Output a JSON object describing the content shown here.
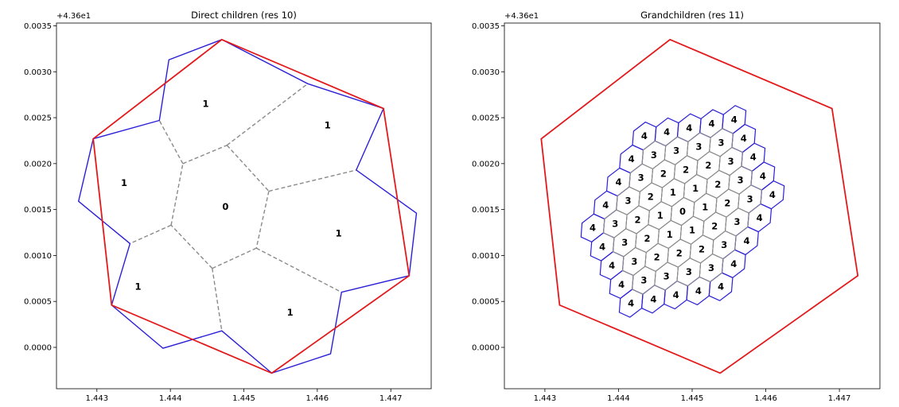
{
  "colors": {
    "parent_outline": "#e31a1c",
    "child_outline": "#2b1fd6",
    "interior_edge": "#8a8a8a",
    "axes": "#000000",
    "background": "#ffffff"
  },
  "chart_data": [
    {
      "type": "diagram",
      "title": "Direct children (res 10)",
      "offset_text": "+4.36e1",
      "xlim": [
        1.44245,
        1.44755
      ],
      "ylim": [
        -0.00045,
        0.00353
      ],
      "xticks": [
        "1.443",
        "1.444",
        "1.445",
        "1.446",
        "1.447"
      ],
      "xtick_values": [
        1.443,
        1.444,
        1.445,
        1.446,
        1.447
      ],
      "yticks": [
        "0.0000",
        "0.0005",
        "0.0010",
        "0.0015",
        "0.0020",
        "0.0025",
        "0.0030",
        "0.0035"
      ],
      "ytick_values": [
        0.0,
        0.0005,
        0.001,
        0.0015,
        0.002,
        0.0025,
        0.003,
        0.0035
      ],
      "grid_step": 1,
      "parent_hexagon": [
        [
          1.4447,
          0.00335
        ],
        [
          1.4469,
          0.0026
        ],
        [
          1.44725,
          0.00078
        ],
        [
          1.44538,
          -0.00028
        ],
        [
          1.4432,
          0.00046
        ],
        [
          1.44295,
          0.00227
        ]
      ],
      "center_cell_hexagon": [
        [
          1.44417,
          0.002
        ],
        [
          1.44477,
          0.0022
        ],
        [
          1.44534,
          0.0017
        ],
        [
          1.44517,
          0.00108
        ],
        [
          1.44457,
          0.00086
        ],
        [
          1.44401,
          0.00133
        ]
      ],
      "outline_children": [
        {
          "label": "1",
          "position": "top",
          "center": [
            1.44448,
            0.00265
          ]
        },
        {
          "label": "1",
          "position": "upper-right",
          "center": [
            1.44614,
            0.00242
          ]
        },
        {
          "label": "1",
          "position": "lower-right",
          "center": [
            1.44629,
            0.00124
          ]
        },
        {
          "label": "1",
          "position": "bottom",
          "center": [
            1.44563,
            0.00038
          ]
        },
        {
          "label": "1",
          "position": "lower-left",
          "center": [
            1.44356,
            0.00066
          ]
        },
        {
          "label": "1",
          "position": "upper-left",
          "center": [
            1.44337,
            0.00179
          ]
        }
      ],
      "cells": [
        {
          "label": "0",
          "x": 1.44475,
          "y": 0.00153
        }
      ]
    },
    {
      "type": "diagram",
      "title": "Grandchildren (res 11)",
      "offset_text": "+4.36e1",
      "xlim": [
        1.44245,
        1.44755
      ],
      "ylim": [
        -0.00045,
        0.00353
      ],
      "xticks": [
        "1.443",
        "1.444",
        "1.445",
        "1.446",
        "1.447"
      ],
      "xtick_values": [
        1.443,
        1.444,
        1.445,
        1.446,
        1.447
      ],
      "yticks": [
        "0.0000",
        "0.0005",
        "0.0010",
        "0.0015",
        "0.0020",
        "0.0025",
        "0.0030",
        "0.0035"
      ],
      "ytick_values": [
        0.0,
        0.0005,
        0.001,
        0.0015,
        0.002,
        0.0025,
        0.003,
        0.0035
      ],
      "parent_hexagon": [
        [
          1.4447,
          0.00335
        ],
        [
          1.4469,
          0.0026
        ],
        [
          1.44725,
          0.00078
        ],
        [
          1.44538,
          -0.00028
        ],
        [
          1.4432,
          0.00046
        ],
        [
          1.44295,
          0.00227
        ]
      ],
      "hex_grid": {
        "rows": [
          -8,
          -7,
          -6,
          -5,
          -4,
          -3,
          -2,
          -1,
          0,
          1,
          2,
          3,
          4,
          5,
          6,
          7,
          8
        ],
        "max_ring": 4
      },
      "cells": [
        {
          "label": "0",
          "ring": 0
        }
      ]
    }
  ]
}
